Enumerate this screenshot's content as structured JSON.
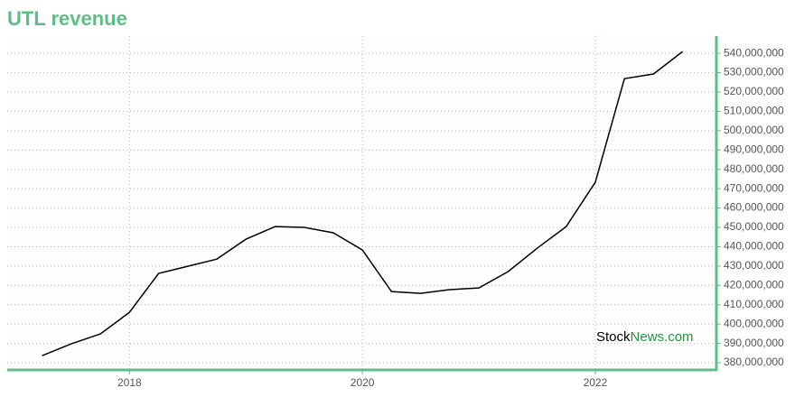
{
  "chart_data": {
    "type": "line",
    "title": "UTL revenue",
    "x": [
      2017.25,
      2017.5,
      2017.75,
      2018.0,
      2018.25,
      2018.5,
      2018.75,
      2019.0,
      2019.25,
      2019.5,
      2019.75,
      2020.0,
      2020.25,
      2020.5,
      2020.75,
      2021.0,
      2021.25,
      2021.5,
      2021.75,
      2022.0,
      2022.25,
      2022.5,
      2022.75
    ],
    "series": [
      {
        "name": "UTL revenue",
        "color": "#000000",
        "values": [
          383700000,
          389800000,
          394900000,
          406100000,
          426200000,
          429900000,
          433600000,
          443900000,
          450400000,
          450000000,
          447200000,
          438300000,
          416800000,
          415900000,
          417800000,
          418700000,
          427100000,
          439200000,
          450400000,
          473300000,
          526900000,
          529300000,
          540900000
        ]
      }
    ],
    "xlim": [
      2016.95,
      2023.04
    ],
    "xticks": [
      2018,
      2020,
      2022
    ],
    "ylim": [
      376300000,
      548900000
    ],
    "yticks": [
      {
        "value": 380000000,
        "label": "380,000,000"
      },
      {
        "value": 390000000,
        "label": "390,000,000"
      },
      {
        "value": 400000000,
        "label": "400,000,000"
      },
      {
        "value": 410000000,
        "label": "410,000,000"
      },
      {
        "value": 420000000,
        "label": "420,000,000"
      },
      {
        "value": 430000000,
        "label": "430,000,000"
      },
      {
        "value": 440000000,
        "label": "440,000,000"
      },
      {
        "value": 450000000,
        "label": "450,000,000"
      },
      {
        "value": 460000000,
        "label": "460,000,000"
      },
      {
        "value": 470000000,
        "label": "470,000,000"
      },
      {
        "value": 480000000,
        "label": "480,000,000"
      },
      {
        "value": 490000000,
        "label": "490,000,000"
      },
      {
        "value": 500000000,
        "label": "500,000,000"
      },
      {
        "value": 510000000,
        "label": "510,000,000"
      },
      {
        "value": 520000000,
        "label": "520,000,000"
      },
      {
        "value": 530000000,
        "label": "530,000,000"
      },
      {
        "value": 540000000,
        "label": "540,000,000"
      }
    ],
    "grid": true,
    "axis_color": "#5cbf85",
    "watermark": [
      "Stock",
      "News.com"
    ]
  }
}
